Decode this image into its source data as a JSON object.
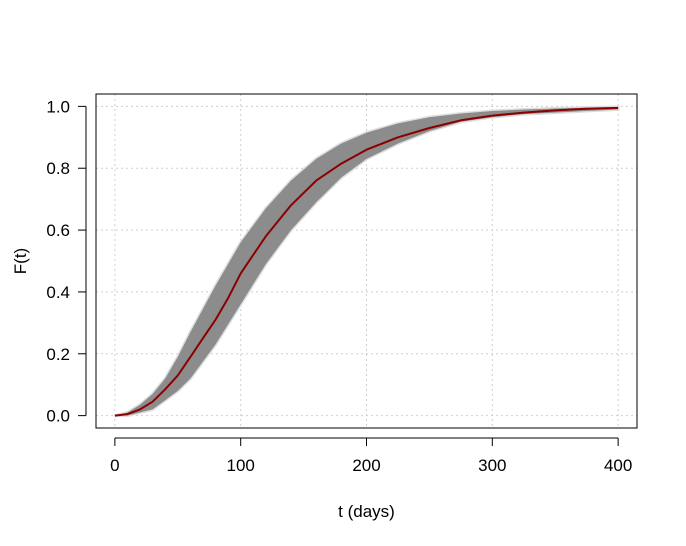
{
  "chart_data": {
    "type": "line",
    "title": "",
    "xlabel": "t (days)",
    "ylabel": "F(t)",
    "xlim": [
      -15,
      415
    ],
    "ylim": [
      -0.04,
      1.04
    ],
    "xticks": [
      0,
      100,
      200,
      300,
      400
    ],
    "xtick_labels": [
      "0",
      "100",
      "200",
      "300",
      "400"
    ],
    "yticks": [
      0.0,
      0.2,
      0.4,
      0.6,
      0.8,
      1.0
    ],
    "ytick_labels": [
      "0.0",
      "0.2",
      "0.4",
      "0.6",
      "0.8",
      "1.0"
    ],
    "grid": true,
    "grid_style": "dotted",
    "band": {
      "color": "#8c8c8c",
      "x": [
        0,
        10,
        20,
        30,
        40,
        50,
        60,
        80,
        100,
        120,
        140,
        160,
        180,
        200,
        225,
        250,
        275,
        300,
        325,
        350,
        375,
        400
      ],
      "lower": [
        0.0,
        0.0,
        0.01,
        0.02,
        0.05,
        0.08,
        0.12,
        0.23,
        0.36,
        0.49,
        0.6,
        0.69,
        0.77,
        0.83,
        0.88,
        0.92,
        0.95,
        0.965,
        0.975,
        0.98,
        0.985,
        0.99
      ],
      "upper": [
        0.0,
        0.01,
        0.035,
        0.07,
        0.12,
        0.19,
        0.27,
        0.42,
        0.56,
        0.67,
        0.76,
        0.83,
        0.88,
        0.915,
        0.945,
        0.965,
        0.977,
        0.985,
        0.99,
        0.993,
        0.996,
        0.998
      ]
    },
    "series": [
      {
        "color": "#8b0000",
        "x": [
          0,
          10,
          20,
          30,
          40,
          50,
          60,
          70,
          80,
          90,
          100,
          120,
          140,
          160,
          180,
          200,
          225,
          250,
          275,
          300,
          325,
          350,
          375,
          400
        ],
        "y": [
          0.0,
          0.005,
          0.02,
          0.045,
          0.085,
          0.13,
          0.19,
          0.25,
          0.31,
          0.38,
          0.46,
          0.58,
          0.68,
          0.76,
          0.815,
          0.86,
          0.9,
          0.93,
          0.955,
          0.97,
          0.98,
          0.987,
          0.992,
          0.995
        ]
      }
    ]
  }
}
